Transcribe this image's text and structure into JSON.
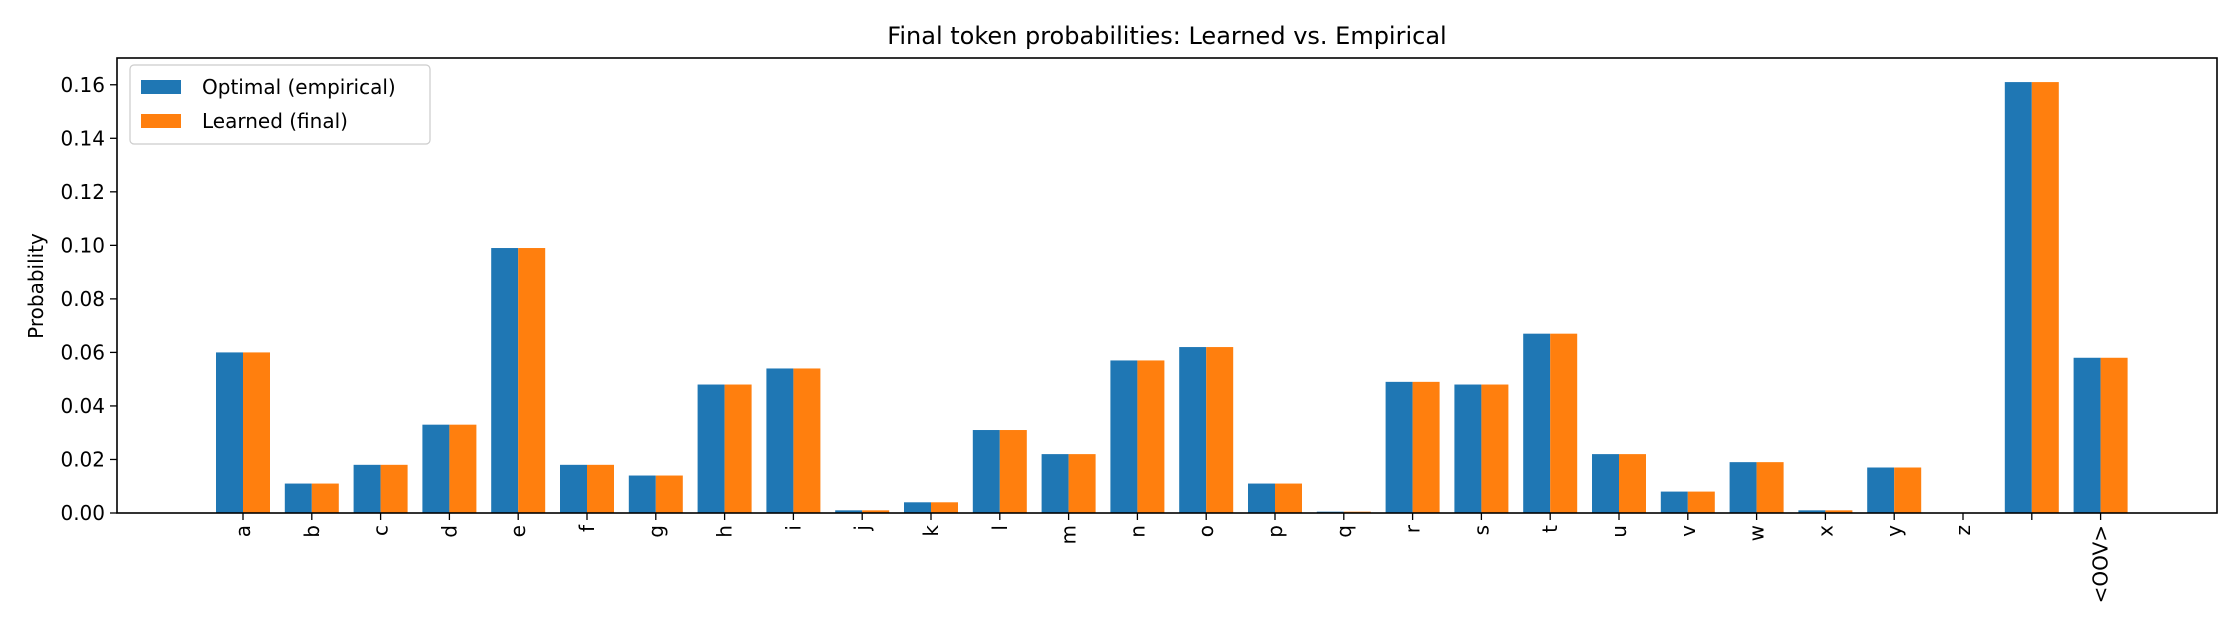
{
  "chart_data": {
    "type": "bar",
    "title": "Final token probabilities: Learned vs. Empirical",
    "xlabel": "",
    "ylabel": "Probability",
    "ylim": [
      0,
      0.17
    ],
    "yticks": [
      0.0,
      0.02,
      0.04,
      0.06,
      0.08,
      0.1,
      0.12,
      0.14,
      0.16
    ],
    "ytick_labels": [
      "0.00",
      "0.02",
      "0.04",
      "0.06",
      "0.08",
      "0.10",
      "0.12",
      "0.14",
      "0.16"
    ],
    "categories": [
      "a",
      "b",
      "c",
      "d",
      "e",
      "f",
      "g",
      "h",
      "i",
      "j",
      "k",
      "l",
      "m",
      "n",
      "o",
      "p",
      "q",
      "r",
      "s",
      "t",
      "u",
      "v",
      "w",
      "x",
      "y",
      "z",
      " ",
      "<OOV>"
    ],
    "series": [
      {
        "name": "Optimal (empirical)",
        "color": "#1f77b4",
        "values": [
          0.06,
          0.011,
          0.018,
          0.033,
          0.099,
          0.018,
          0.014,
          0.048,
          0.054,
          0.001,
          0.004,
          0.031,
          0.022,
          0.057,
          0.062,
          0.011,
          0.0005,
          0.049,
          0.048,
          0.067,
          0.022,
          0.008,
          0.019,
          0.001,
          0.017,
          0.0,
          0.161,
          0.058
        ]
      },
      {
        "name": "Learned (final)",
        "color": "#ff7f0e",
        "values": [
          0.06,
          0.011,
          0.018,
          0.033,
          0.099,
          0.018,
          0.014,
          0.048,
          0.054,
          0.001,
          0.004,
          0.031,
          0.022,
          0.057,
          0.062,
          0.011,
          0.0005,
          0.049,
          0.048,
          0.067,
          0.022,
          0.008,
          0.019,
          0.001,
          0.017,
          0.0,
          0.161,
          0.058
        ]
      }
    ],
    "grid": false,
    "legend_position": "top-left"
  }
}
